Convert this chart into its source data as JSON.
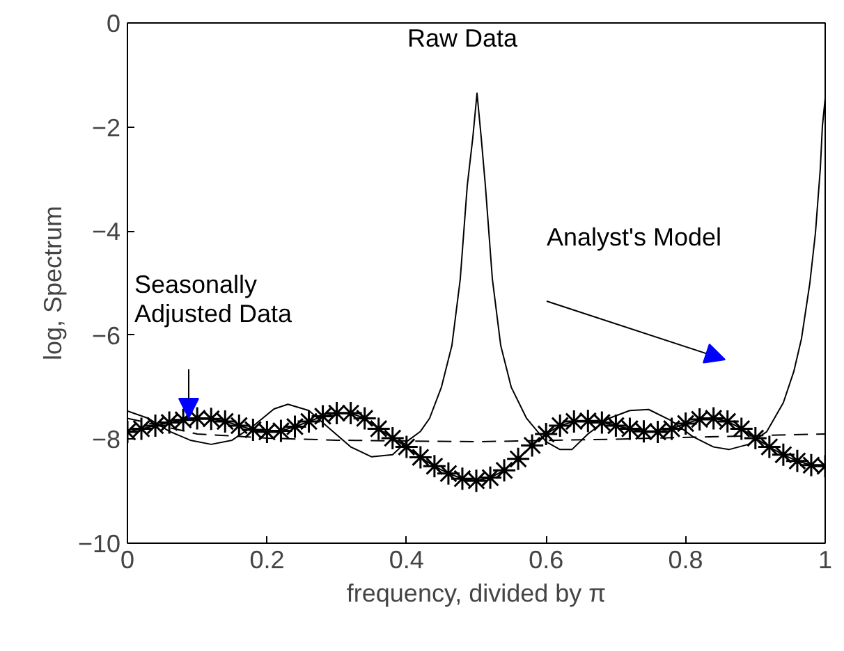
{
  "chart_data": {
    "type": "line",
    "xlabel": "frequency, divided by π",
    "ylabel": "log, Spectrum",
    "xlim": [
      0,
      1
    ],
    "ylim": [
      -10,
      0
    ],
    "xticks": [
      0,
      0.2,
      0.4,
      0.6,
      0.8,
      1
    ],
    "yticks": [
      -10,
      -8,
      -6,
      -4,
      -2,
      0
    ],
    "grid": false,
    "series": [
      {
        "color": "#000000",
        "line_style": "solid",
        "marker": "none",
        "x": [
          0,
          0.03,
          0.06,
          0.09,
          0.12,
          0.15,
          0.18,
          0.21,
          0.23,
          0.26,
          0.29,
          0.32,
          0.35,
          0.38,
          0.4,
          0.42,
          0.433,
          0.45,
          0.465,
          0.477,
          0.487,
          0.495,
          0.501,
          0.507,
          0.513,
          0.523,
          0.535,
          0.55,
          0.572,
          0.6,
          0.62,
          0.637,
          0.66,
          0.69,
          0.72,
          0.747,
          0.78,
          0.81,
          0.84,
          0.862,
          0.89,
          0.916,
          0.94,
          0.955,
          0.966,
          0.978,
          0.986,
          0.993,
          0.996,
          1.0
        ],
        "values": [
          -7.46,
          -7.6,
          -7.85,
          -8.02,
          -8.1,
          -8.02,
          -7.75,
          -7.42,
          -7.33,
          -7.45,
          -7.8,
          -8.15,
          -8.34,
          -8.3,
          -8.05,
          -7.85,
          -7.6,
          -7.0,
          -6.2,
          -4.92,
          -3.13,
          -2.2,
          -1.35,
          -2.2,
          -3.13,
          -4.92,
          -6.2,
          -7.0,
          -7.6,
          -8.05,
          -8.2,
          -8.2,
          -7.9,
          -7.6,
          -7.45,
          -7.43,
          -7.65,
          -7.95,
          -8.15,
          -8.2,
          -8.1,
          -7.86,
          -7.3,
          -6.7,
          -6.07,
          -5.0,
          -4.04,
          -2.8,
          -1.98,
          -1.45
        ]
      },
      {
        "color": "#000000",
        "line_style": "dashed",
        "marker": "none",
        "x": [
          0,
          0.1,
          0.2,
          0.3,
          0.5,
          0.7,
          0.85,
          1.0
        ],
        "values": [
          -7.6,
          -7.9,
          -7.98,
          -8.02,
          -8.05,
          -8.0,
          -7.95,
          -7.9
        ]
      },
      {
        "color": "#000000",
        "line_style": "solid",
        "marker": "cross",
        "x": [
          0,
          0.02,
          0.04,
          0.06,
          0.08,
          0.1,
          0.12,
          0.14,
          0.16,
          0.18,
          0.2,
          0.22,
          0.24,
          0.26,
          0.28,
          0.3,
          0.32,
          0.34,
          0.36,
          0.38,
          0.4,
          0.42,
          0.44,
          0.46,
          0.48,
          0.5,
          0.52,
          0.54,
          0.56,
          0.58,
          0.6,
          0.62,
          0.64,
          0.66,
          0.68,
          0.7,
          0.72,
          0.74,
          0.76,
          0.78,
          0.8,
          0.82,
          0.84,
          0.86,
          0.88,
          0.9,
          0.92,
          0.94,
          0.96,
          0.98,
          1.0
        ],
        "values": [
          -7.86,
          -7.8,
          -7.74,
          -7.68,
          -7.63,
          -7.6,
          -7.61,
          -7.66,
          -7.74,
          -7.82,
          -7.86,
          -7.84,
          -7.76,
          -7.66,
          -7.56,
          -7.5,
          -7.5,
          -7.6,
          -7.8,
          -7.98,
          -8.15,
          -8.35,
          -8.52,
          -8.66,
          -8.76,
          -8.8,
          -8.74,
          -8.6,
          -8.38,
          -8.12,
          -7.9,
          -7.74,
          -7.66,
          -7.65,
          -7.68,
          -7.74,
          -7.8,
          -7.85,
          -7.86,
          -7.8,
          -7.7,
          -7.62,
          -7.6,
          -7.66,
          -7.8,
          -7.98,
          -8.15,
          -8.3,
          -8.42,
          -8.5,
          -8.52
        ]
      }
    ],
    "annotations": [
      "Raw Data",
      "Analyst's Model",
      "Seasonally\nAdjusted Data"
    ]
  }
}
